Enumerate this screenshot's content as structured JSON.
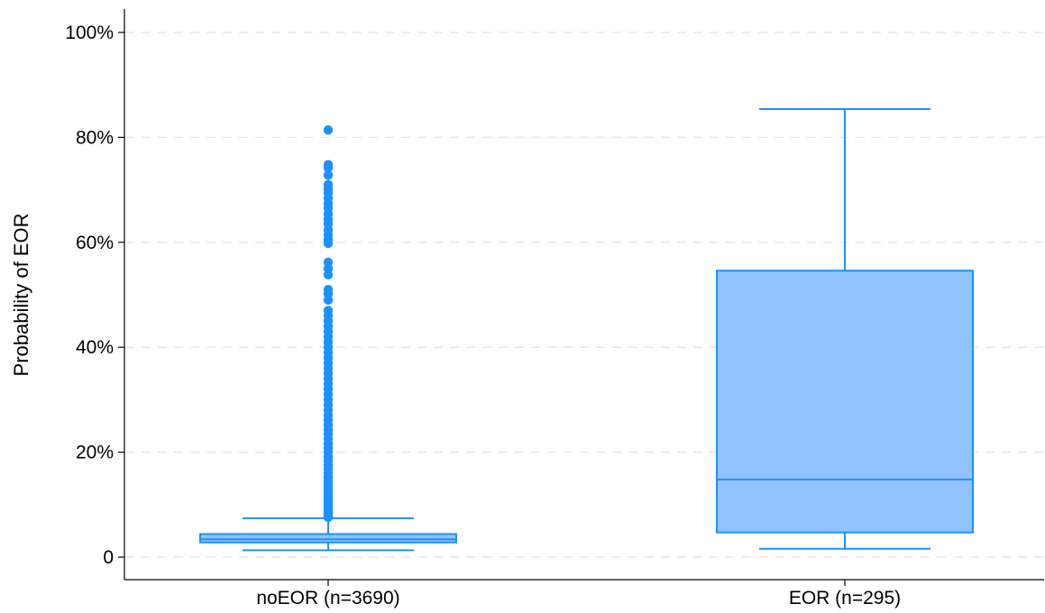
{
  "chart_data": {
    "type": "box",
    "title": "",
    "xlabel": "",
    "ylabel": "Probability of EOR",
    "ylim": [
      0,
      100
    ],
    "y_ticks": [
      {
        "value": 0,
        "label": "0"
      },
      {
        "value": 20,
        "label": "20%"
      },
      {
        "value": 40,
        "label": "40%"
      },
      {
        "value": 60,
        "label": "60%"
      },
      {
        "value": 80,
        "label": "80%"
      },
      {
        "value": 100,
        "label": "100%"
      }
    ],
    "grid": "horizontal dashed",
    "categories": [
      "noEOR (n=3690)",
      "EOR (n=295)"
    ],
    "boxes": [
      {
        "category": "noEOR (n=3690)",
        "whisker_low": 1.3,
        "q1": 2.8,
        "median": 3.4,
        "q3": 4.4,
        "whisker_high": 7.4,
        "outliers": [
          7.6,
          7.8,
          8.0,
          8.2,
          8.5,
          8.8,
          9.1,
          9.4,
          9.8,
          10.2,
          10.6,
          11.0,
          11.5,
          12.0,
          12.6,
          13.2,
          13.8,
          14.5,
          15.2,
          16.0,
          16.8,
          17.5,
          18.3,
          19.1,
          20.0,
          20.8,
          21.6,
          22.5,
          23.4,
          24.3,
          25.2,
          26.1,
          27.0,
          28.0,
          29.0,
          30.0,
          31.0,
          32.0,
          33.0,
          34.0,
          35.0,
          36.0,
          37.0,
          38.0,
          39.0,
          40.0,
          41.0,
          42.0,
          43.0,
          44.0,
          45.0,
          46.0,
          47.0,
          49.0,
          50.2,
          51.0,
          53.8,
          55.0,
          56.2,
          59.8,
          60.5,
          61.4,
          62.3,
          63.5,
          64.4,
          65.4,
          66.5,
          67.4,
          68.4,
          69.4,
          70.2,
          71.0,
          72.8,
          74.2,
          74.8,
          81.4
        ],
        "color": "#1E90FF",
        "fill": "#90C3FF"
      },
      {
        "category": "EOR (n=295)",
        "whisker_low": 1.6,
        "q1": 4.7,
        "median": 14.8,
        "q3": 54.6,
        "whisker_high": 85.4,
        "outliers": [],
        "color": "#1E90FF",
        "fill": "#90C3FF"
      }
    ]
  },
  "colors": {
    "stroke": "#1E90FF",
    "box_fill": "#90C3FF",
    "grid": "#E6E6E6",
    "axis": "#000000"
  }
}
